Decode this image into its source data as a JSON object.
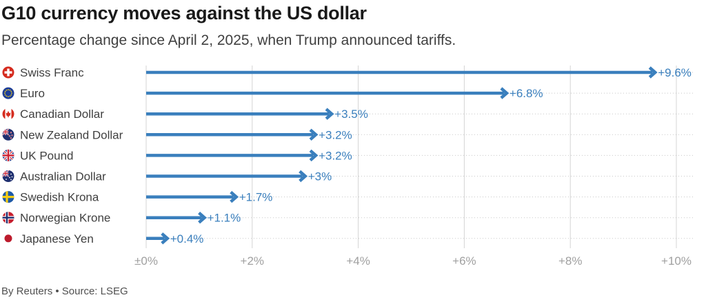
{
  "chart_data": {
    "type": "bar",
    "orientation": "horizontal",
    "title": "G10 currency moves against the US dollar",
    "subtitle": "Percentage change since April 2, 2025, when Trump announced tariffs.",
    "categories": [
      "Swiss Franc",
      "Euro",
      "Canadian Dollar",
      "New Zealand Dollar",
      "UK Pound",
      "Australian Dollar",
      "Swedish Krona",
      "Norwegian Krone",
      "Japanese Yen"
    ],
    "values": [
      9.6,
      6.8,
      3.5,
      3.2,
      3.2,
      3.0,
      1.7,
      1.1,
      0.4
    ],
    "value_labels": [
      "+9.6%",
      "+6.8%",
      "+3.5%",
      "+3.2%",
      "+3.2%",
      "+3%",
      "+1.7%",
      "+1.1%",
      "+0.4%"
    ],
    "flag_icons": [
      "swiss-flag-icon",
      "eu-flag-icon",
      "canada-flag-icon",
      "new-zealand-flag-icon",
      "uk-flag-icon",
      "australia-flag-icon",
      "sweden-flag-icon",
      "norway-flag-icon",
      "japan-flag-icon"
    ],
    "x_ticks": [
      0,
      2,
      4,
      6,
      8,
      10
    ],
    "x_tick_labels": [
      "±0%",
      "+2%",
      "+4%",
      "+6%",
      "+8%",
      "+10%"
    ],
    "xlim": [
      0,
      10
    ],
    "xlabel": "",
    "ylabel": "",
    "grid": true,
    "bar_color": "#3a7fbd",
    "label_color": "#3a7fbd"
  },
  "footer": "By Reuters • Source: LSEG"
}
